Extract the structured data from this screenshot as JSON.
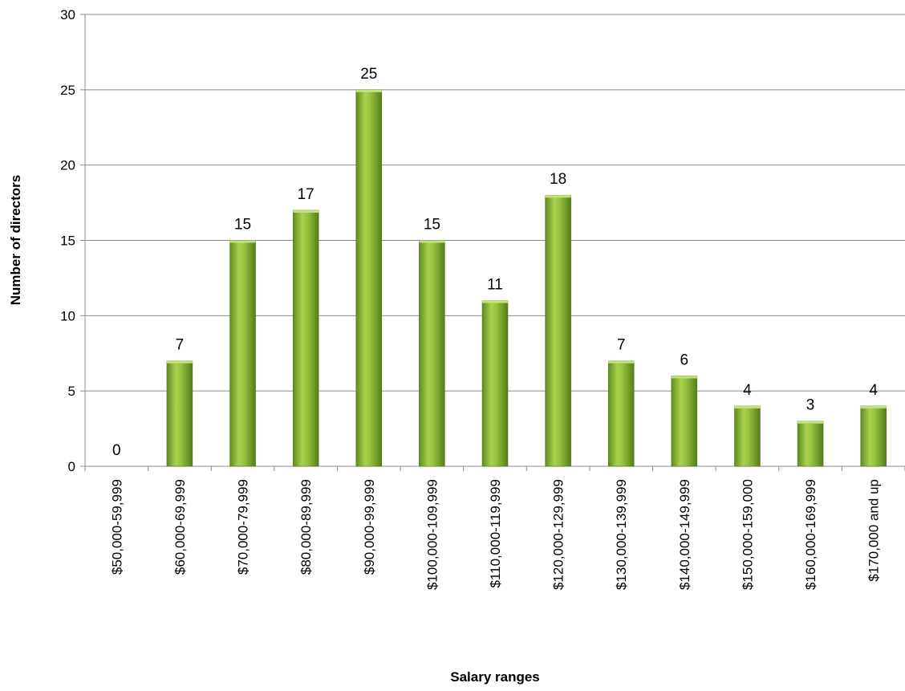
{
  "chart_data": {
    "type": "bar",
    "title": "",
    "xlabel": "Salary ranges",
    "ylabel": "Number of directors",
    "ylim": [
      0,
      30
    ],
    "yticks": [
      0,
      5,
      10,
      15,
      20,
      25,
      30
    ],
    "grid": true,
    "legend": "none",
    "bar_color": "#8db43a",
    "categories": [
      "$50,000-59,999",
      "$60,000-69,999",
      "$70,000-79,999",
      "$80,000-89,999",
      "$90,000-99,999",
      "$100,000-109,999",
      "$110,000-119,999",
      "$120,000-129,999",
      "$130,000-139,999",
      "$140,000-149,999",
      "$150,000-159,000",
      "$160,000-169,999",
      "$170,000 and up"
    ],
    "values": [
      0,
      7,
      15,
      17,
      25,
      15,
      11,
      18,
      7,
      6,
      4,
      3,
      4
    ]
  }
}
